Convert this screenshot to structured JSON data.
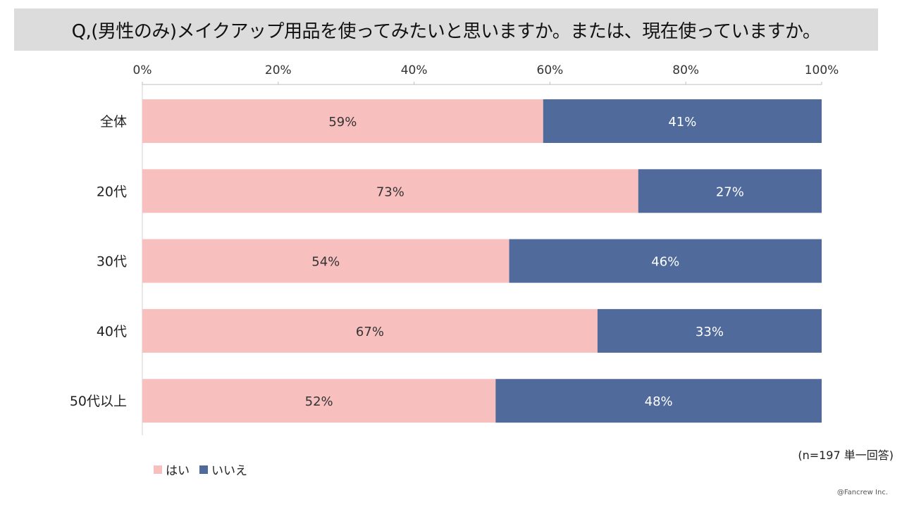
{
  "title": "Q,(男性のみ)メイクアップ用品を使ってみたいと思いますか。または、現在使っていますか。",
  "note": "(n=197 単一回答)",
  "copyright": "@Fancrew Inc.",
  "colors": {
    "yes": "#f8bfbf",
    "no": "#4f6a9b"
  },
  "chart_data": {
    "type": "bar",
    "orientation": "horizontal",
    "stacked": true,
    "percent_stacked": true,
    "categories": [
      "全体",
      "20代",
      "30代",
      "40代",
      "50代以上"
    ],
    "series": [
      {
        "name": "はい",
        "values": [
          59,
          73,
          54,
          67,
          52
        ],
        "labels": [
          "59%",
          "73%",
          "54%",
          "67%",
          "52%"
        ]
      },
      {
        "name": "いいえ",
        "values": [
          41,
          27,
          46,
          33,
          48
        ],
        "labels": [
          "41%",
          "27%",
          "46%",
          "33%",
          "48%"
        ]
      }
    ],
    "xlim": [
      0,
      100
    ],
    "x_ticks": [
      0,
      20,
      40,
      60,
      80,
      100
    ],
    "x_tick_labels": [
      "0%",
      "20%",
      "40%",
      "60%",
      "80%",
      "100%"
    ],
    "axis_position": "top",
    "legend_position": "bottom-left",
    "grid": false
  }
}
